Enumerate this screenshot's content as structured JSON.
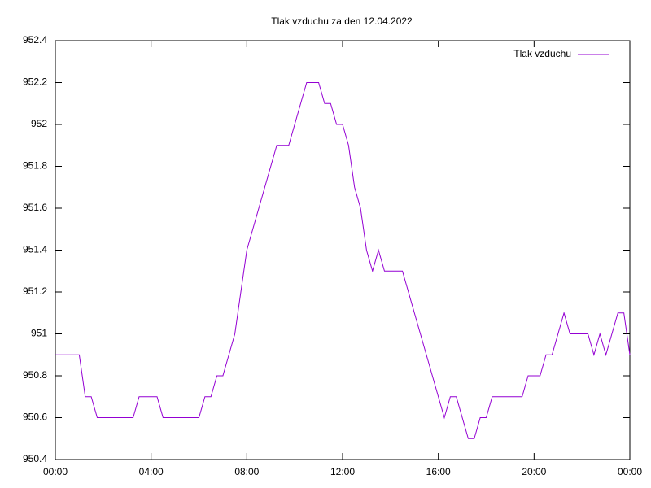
{
  "chart_data": {
    "type": "line",
    "title": "Tlak vzduchu za den 12.04.2022",
    "x": [
      0,
      0.25,
      0.5,
      0.75,
      1,
      1.25,
      1.5,
      1.75,
      2,
      2.25,
      2.5,
      2.75,
      3,
      3.25,
      3.5,
      3.75,
      4,
      4.25,
      4.5,
      4.75,
      5,
      5.25,
      5.5,
      5.75,
      6,
      6.25,
      6.5,
      6.75,
      7,
      7.25,
      7.5,
      7.75,
      8,
      8.25,
      8.5,
      8.75,
      9,
      9.25,
      9.5,
      9.75,
      10,
      10.25,
      10.5,
      10.75,
      11,
      11.25,
      11.5,
      11.75,
      12,
      12.25,
      12.5,
      12.75,
      13,
      13.25,
      13.5,
      13.75,
      14,
      14.25,
      14.5,
      14.75,
      15,
      15.25,
      15.5,
      15.75,
      16,
      16.25,
      16.5,
      16.75,
      17,
      17.25,
      17.5,
      17.75,
      18,
      18.25,
      18.5,
      18.75,
      19,
      19.25,
      19.5,
      19.75,
      20,
      20.25,
      20.5,
      20.75,
      21,
      21.25,
      21.5,
      21.75,
      22,
      22.25,
      22.5,
      22.75,
      23,
      23.25,
      23.5,
      23.75,
      24
    ],
    "series": [
      {
        "name": "Tlak vzduchu",
        "color": "#9400d3",
        "values": [
          950.9,
          950.9,
          950.9,
          950.9,
          950.9,
          950.7,
          950.7,
          950.6,
          950.6,
          950.6,
          950.6,
          950.6,
          950.6,
          950.6,
          950.7,
          950.7,
          950.7,
          950.7,
          950.6,
          950.6,
          950.6,
          950.6,
          950.6,
          950.6,
          950.6,
          950.7,
          950.7,
          950.8,
          950.8,
          950.9,
          951.0,
          951.2,
          951.4,
          951.5,
          951.6,
          951.7,
          951.8,
          951.9,
          951.9,
          951.9,
          952.0,
          952.1,
          952.2,
          952.2,
          952.2,
          952.1,
          952.1,
          952.0,
          952.0,
          951.9,
          951.7,
          951.6,
          951.4,
          951.3,
          951.4,
          951.3,
          951.3,
          951.3,
          951.3,
          951.2,
          951.1,
          951.0,
          950.9,
          950.8,
          950.7,
          950.6,
          950.7,
          950.7,
          950.6,
          950.5,
          950.5,
          950.6,
          950.6,
          950.7,
          950.7,
          950.7,
          950.7,
          950.7,
          950.7,
          950.8,
          950.8,
          950.8,
          950.9,
          950.9,
          951.0,
          951.1,
          951.0,
          951.0,
          951.0,
          951.0,
          950.9,
          951.0,
          950.9,
          951.0,
          951.1,
          951.1,
          950.9
        ]
      }
    ],
    "xlim": [
      0,
      24
    ],
    "xticks": [
      {
        "value": 0,
        "label": "00:00"
      },
      {
        "value": 4,
        "label": "04:00"
      },
      {
        "value": 8,
        "label": "08:00"
      },
      {
        "value": 12,
        "label": "12:00"
      },
      {
        "value": 16,
        "label": "16:00"
      },
      {
        "value": 20,
        "label": "20:00"
      },
      {
        "value": 24,
        "label": "00:00"
      }
    ],
    "ylim": [
      950.4,
      952.4
    ],
    "yticks": [
      950.4,
      950.6,
      950.8,
      951,
      951.2,
      951.4,
      951.6,
      951.8,
      952,
      952.2,
      952.4
    ],
    "grid": false,
    "legend": "top-right"
  }
}
